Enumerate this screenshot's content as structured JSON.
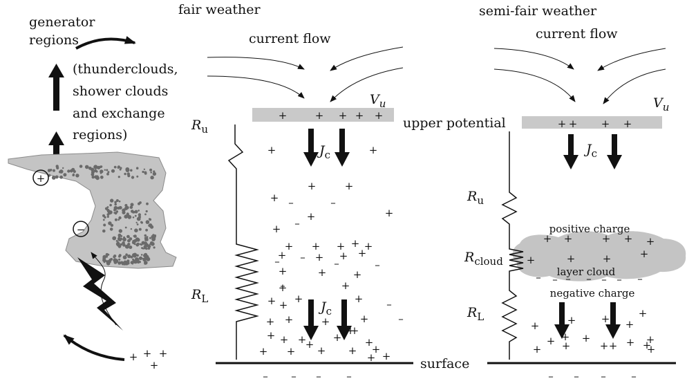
{
  "colors": {
    "ink": "#111111",
    "cloud_fill": "#c4c4c4",
    "plate_fill": "#c9c9c9",
    "precip": "#6a6a6a"
  },
  "left_panel": {
    "title_line1": "generator",
    "title_line2": "regions",
    "note_line1": "(thunderclouds,",
    "note_line2": "shower clouds",
    "note_line3": "and exchange",
    "note_line4": "regions)",
    "plus_marker": "+",
    "minus_marker": "−"
  },
  "fair_weather": {
    "title": "fair weather",
    "current_flow": "current flow",
    "upper_voltage": "V",
    "upper_voltage_sub": "u",
    "current_density": "J",
    "current_density_sub": "c",
    "r_upper": "R",
    "r_upper_sub": "u",
    "r_lower": "R",
    "r_lower_sub": "L"
  },
  "semi_fair_weather": {
    "title": "semi-fair weather",
    "current_flow": "current flow",
    "upper_voltage": "V",
    "upper_voltage_sub": "u",
    "current_density": "J",
    "current_density_sub": "c",
    "r_upper": "R",
    "r_upper_sub": "u",
    "r_cloud": "R",
    "r_cloud_sub": "cloud",
    "r_lower": "R",
    "r_lower_sub": "L",
    "positive_charge": "positive charge",
    "layer_cloud": "layer cloud",
    "negative_charge": "negative charge"
  },
  "labels": {
    "upper_potential": "upper potential",
    "surface": "surface"
  },
  "charge_symbols": {
    "plus": "+",
    "minus": "–"
  }
}
